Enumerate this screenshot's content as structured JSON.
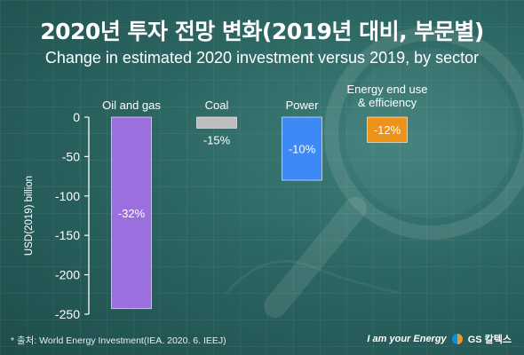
{
  "header": {
    "title": "2020년 투자 전망 변화(2019년 대비, 부문별)",
    "subtitle": "Change in estimated 2020 investment versus 2019, by sector"
  },
  "chart_data": {
    "type": "bar",
    "title": "Change in estimated 2020 investment versus 2019, by sector",
    "xlabel": "",
    "ylabel": "USD(2019) billion",
    "ylim": [
      -250,
      0
    ],
    "yticks": [
      0,
      -50,
      -100,
      -150,
      -200,
      -250
    ],
    "categories": [
      "Oil and gas",
      "Coal",
      "Power",
      "Energy end use & efficiency"
    ],
    "values": [
      -243,
      -14,
      -80,
      -32
    ],
    "data_labels": [
      "-32%",
      "-15%",
      "-10%",
      "-12%"
    ],
    "colors": [
      "#9b6fde",
      "#bdbdbd",
      "#3d8af7",
      "#ee9317"
    ],
    "label_colors": [
      "#ffffff",
      "#ffffff",
      "#ffffff",
      "#ffffff"
    ],
    "grid": false
  },
  "footer": {
    "source": "* 출처: World Energy Investment(IEA. 2020. 6. IEEJ)",
    "tagline": "I am your Energy",
    "brand": "GS 칼텍스"
  }
}
